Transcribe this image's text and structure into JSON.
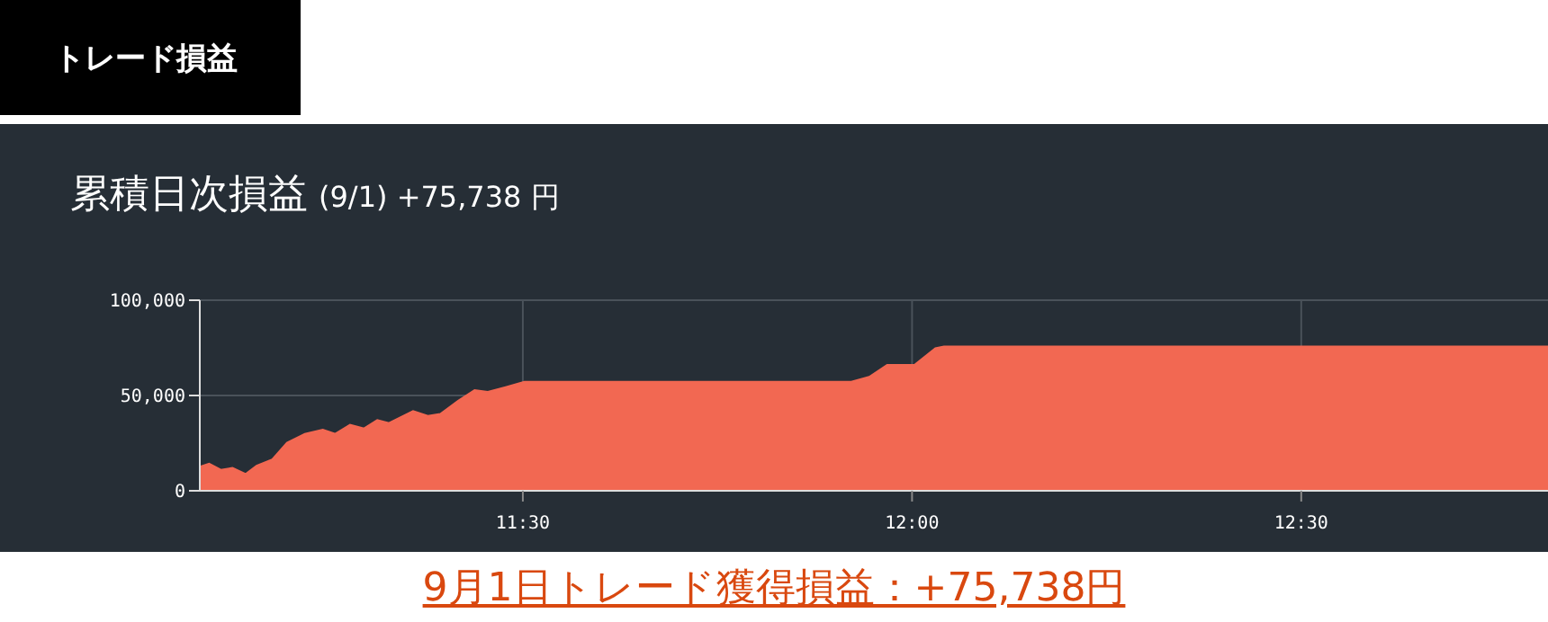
{
  "chart_data": {
    "type": "area",
    "title": "累積日次損益",
    "subtitle": "(9/1) +75,738 円",
    "annotations": [
      "トレード損益",
      "9月1日トレード獲得損益：+75,738円"
    ],
    "x": [
      11.085,
      11.097,
      11.112,
      11.127,
      11.144,
      11.158,
      11.178,
      11.197,
      11.22,
      11.243,
      11.259,
      11.278,
      11.296,
      11.313,
      11.328,
      11.359,
      11.378,
      11.394,
      11.417,
      11.438,
      11.455,
      11.478,
      11.502,
      11.922,
      11.945,
      11.968,
      12.003,
      12.03,
      12.041,
      12.817
    ],
    "series": [
      {
        "color": "#f26852",
        "values": [
          12600,
          14200,
          11000,
          12000,
          8800,
          13200,
          16400,
          25200,
          29900,
          32100,
          29900,
          34600,
          32700,
          37100,
          35500,
          41800,
          39300,
          40300,
          47200,
          52800,
          51900,
          54400,
          57200,
          57200,
          59800,
          66000,
          66000,
          74800,
          75738,
          75738
        ]
      }
    ],
    "xlim": [
      11.085,
      12.817
    ],
    "xticks": [
      {
        "value": 11.5,
        "label": "11:30"
      },
      {
        "value": 12,
        "label": "12:00"
      },
      {
        "value": 12.5,
        "label": "12:30"
      }
    ],
    "ylim": [
      0,
      100000
    ],
    "yticks": [
      {
        "value": 0,
        "label": "0"
      },
      {
        "value": 50000,
        "label": "50,000"
      },
      {
        "value": 100000,
        "label": "100,000"
      }
    ],
    "grid": true
  }
}
